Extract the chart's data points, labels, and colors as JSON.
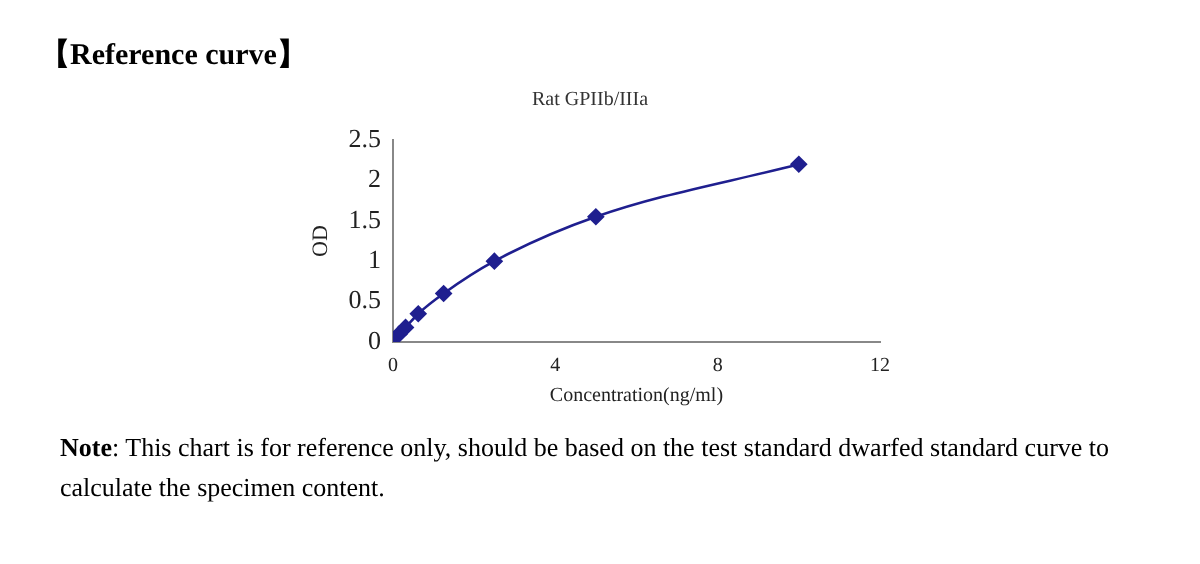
{
  "chart_data": {
    "type": "line",
    "title": "Rat GPIIb/IIIa",
    "xlabel": "Concentration(ng/ml)",
    "ylabel": "OD",
    "annotations": [
      "【Reference curve】",
      "Note: This chart is for reference only, should be based on the test standard dwarfed standard curve to calculate the specimen content."
    ],
    "x": [
      0,
      0.156,
      0.312,
      0.625,
      1.25,
      2.5,
      5,
      10
    ],
    "series": [
      {
        "color": "#1f1f8f",
        "values": [
          0.03,
          0.1,
          0.18,
          0.35,
          0.6,
          1.0,
          1.55,
          2.2
        ]
      }
    ],
    "xlim": [
      0,
      12
    ],
    "xticks": [
      0,
      4,
      8,
      12
    ],
    "ylim": [
      0,
      2.5
    ],
    "yticks": [
      0,
      0.5,
      1,
      1.5,
      2,
      2.5
    ],
    "grid": false,
    "legend": false,
    "marker": "diamond",
    "line_style": "solid"
  }
}
